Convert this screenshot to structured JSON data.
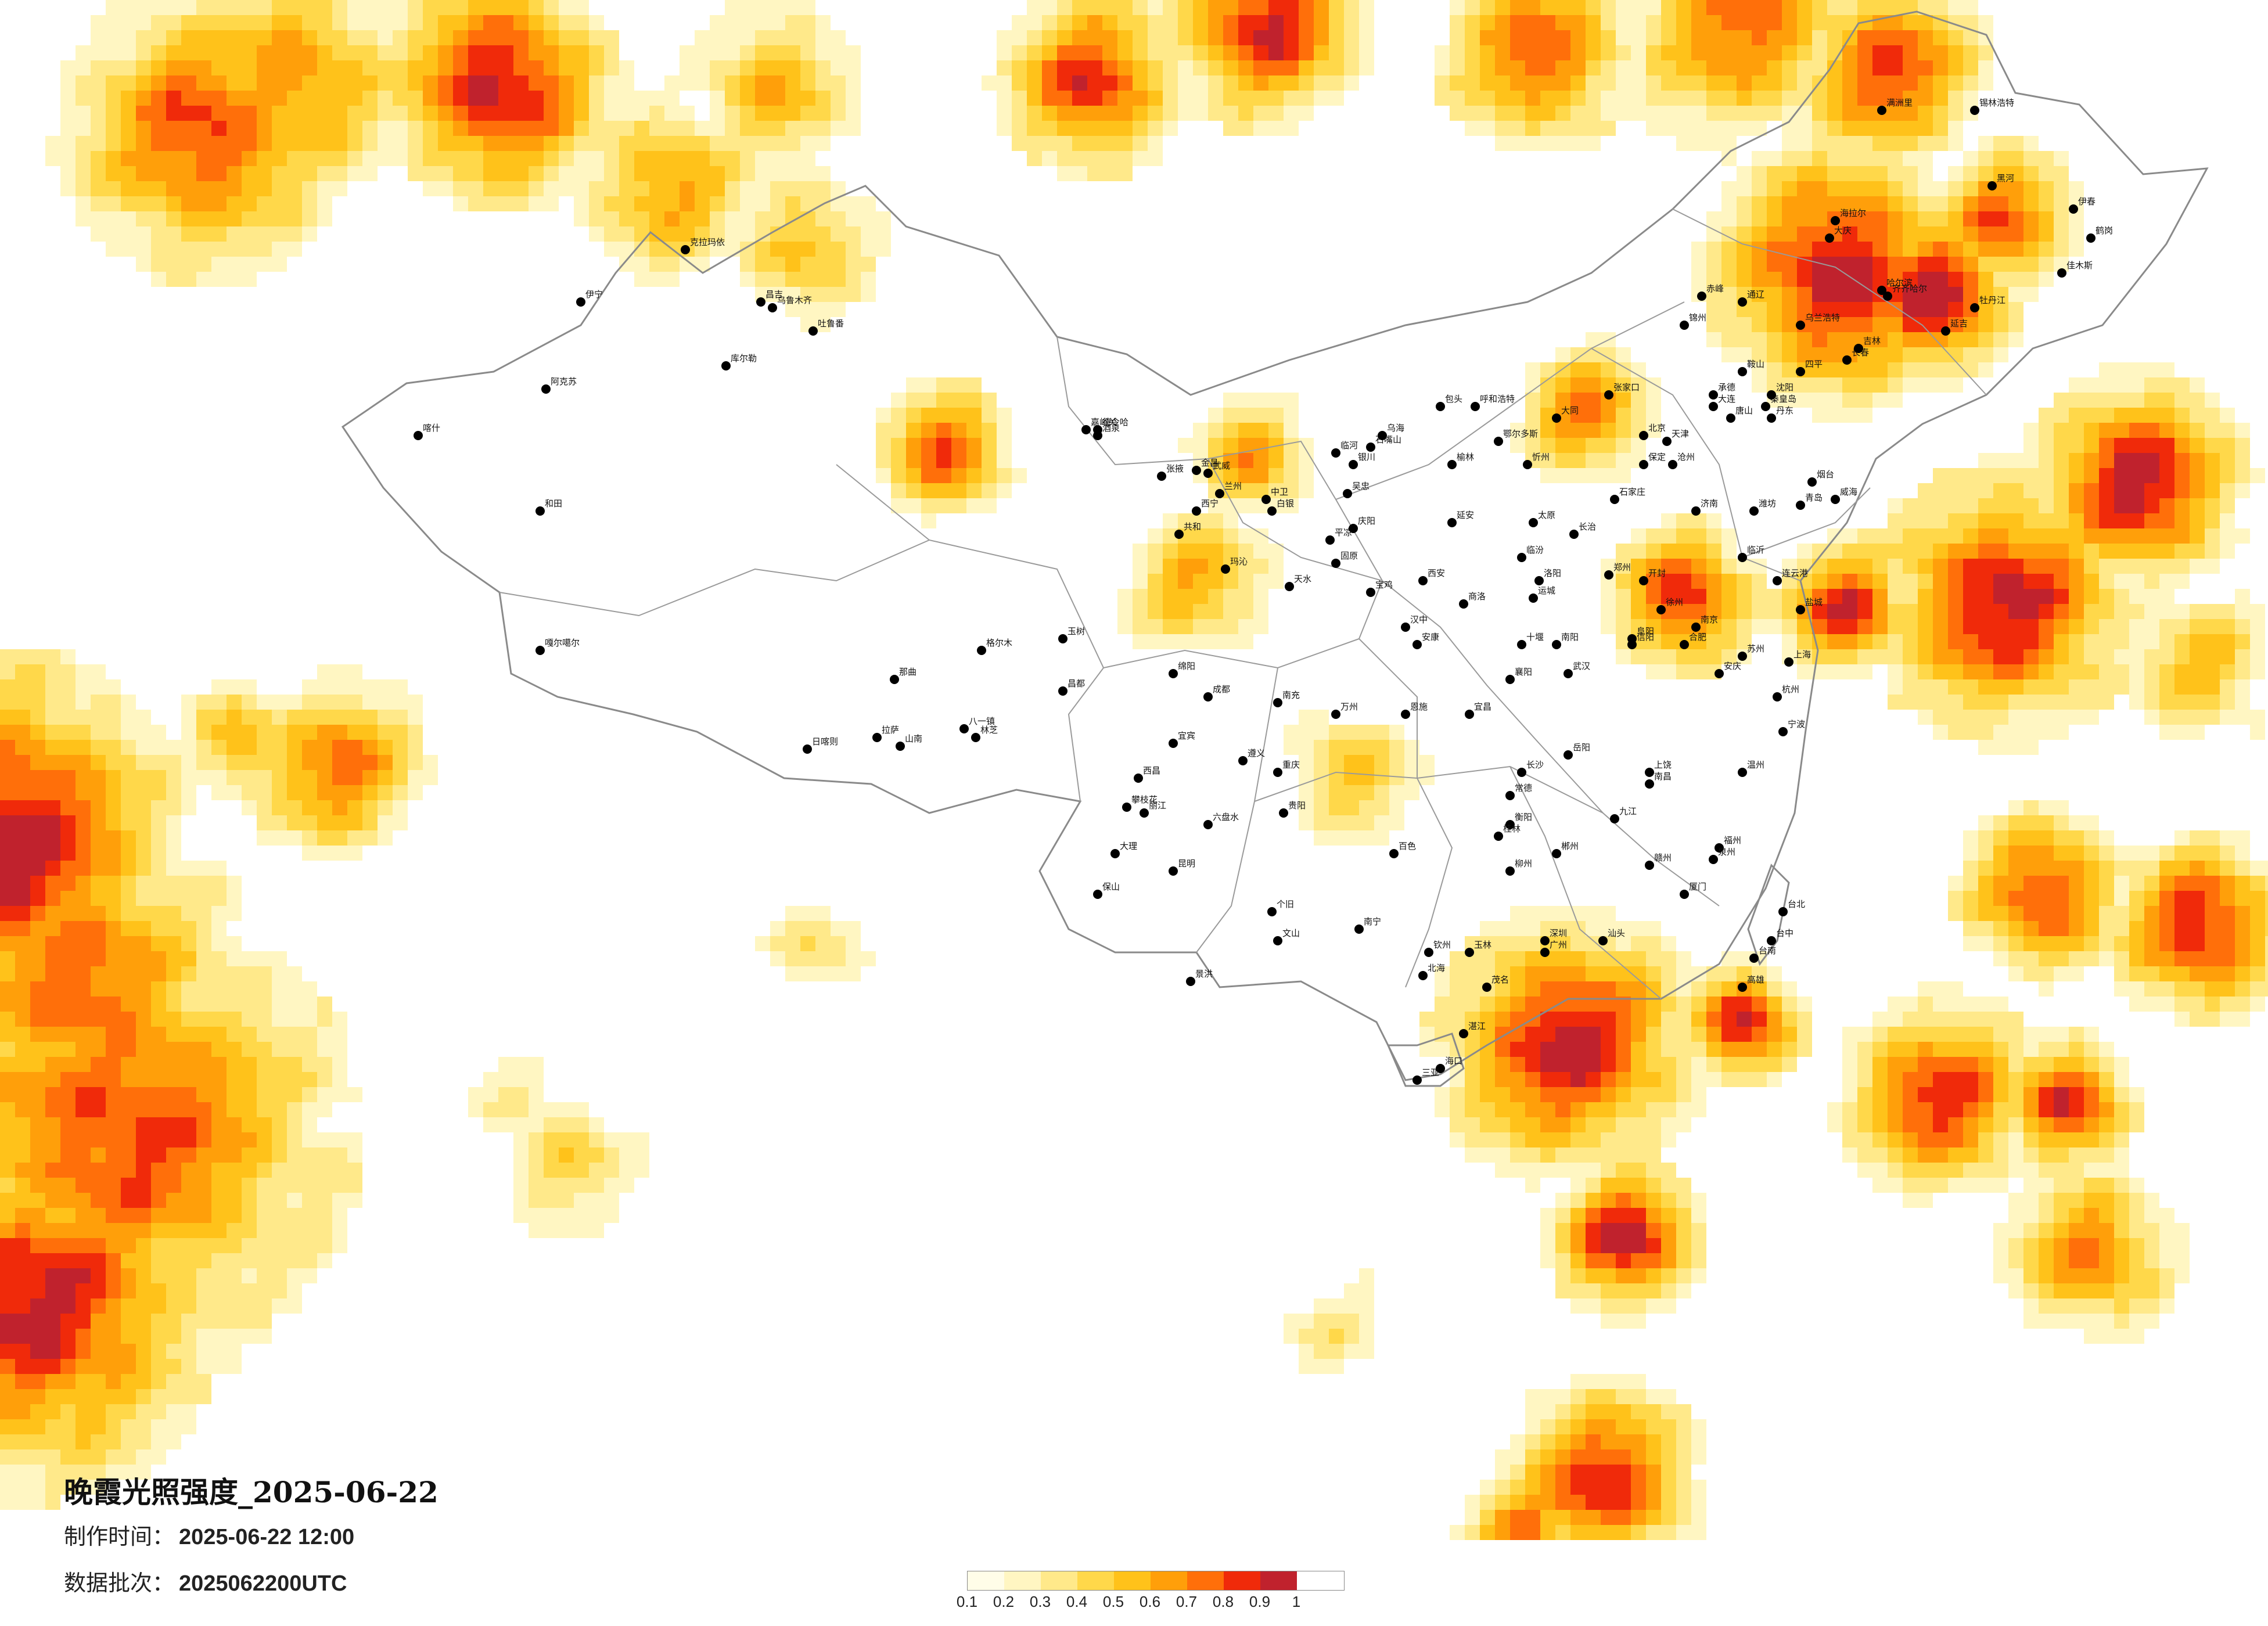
{
  "title": "晚霞光照强度_2025-06-22",
  "meta": {
    "made_label": "制作时间：",
    "made_value": "2025-06-22 12:00",
    "batch_label": "数据批次：",
    "batch_value": "2025062200UTC"
  },
  "legend": {
    "ticks": [
      "0.1",
      "0.2",
      "0.3",
      "0.4",
      "0.5",
      "0.6",
      "0.7",
      "0.8",
      "0.9",
      "1"
    ],
    "colors": [
      "#fffde8",
      "#fff6c2",
      "#ffe98a",
      "#ffd84a",
      "#ffc21a",
      "#ff9f0a",
      "#ff6f0a",
      "#f02a0a",
      "#c0222d"
    ]
  },
  "cities": [
    {
      "name": "克拉玛依"
    },
    {
      "name": "伊宁"
    },
    {
      "name": "昌吉"
    },
    {
      "name": "乌鲁木齐"
    },
    {
      "name": "吐鲁番"
    },
    {
      "name": "库尔勒"
    },
    {
      "name": "阿克苏"
    },
    {
      "name": "喀什"
    },
    {
      "name": "和田"
    },
    {
      "name": "嘎尔噶尔"
    },
    {
      "name": "那曲"
    },
    {
      "name": "日喀则"
    },
    {
      "name": "拉萨"
    },
    {
      "name": "山南"
    },
    {
      "name": "八一镇"
    },
    {
      "name": "林芝"
    },
    {
      "name": "玉树"
    },
    {
      "name": "昌都"
    },
    {
      "name": "格尔木"
    },
    {
      "name": "德令哈"
    },
    {
      "name": "西宁"
    },
    {
      "name": "共和"
    },
    {
      "name": "玛沁"
    },
    {
      "name": "嘉峪关"
    },
    {
      "name": "酒泉"
    },
    {
      "name": "张掖"
    },
    {
      "name": "武威"
    },
    {
      "name": "金昌"
    },
    {
      "name": "兰州"
    },
    {
      "name": "白银"
    },
    {
      "name": "天水"
    },
    {
      "name": "平凉"
    },
    {
      "name": "庆阳"
    },
    {
      "name": "固原"
    },
    {
      "name": "中卫"
    },
    {
      "name": "吴忠"
    },
    {
      "name": "银川"
    },
    {
      "name": "石嘴山"
    },
    {
      "name": "乌海"
    },
    {
      "name": "临河"
    },
    {
      "name": "包头"
    },
    {
      "name": "呼和浩特"
    },
    {
      "name": "鄂尔多斯"
    },
    {
      "name": "榆林"
    },
    {
      "name": "延安"
    },
    {
      "name": "西安"
    },
    {
      "name": "宝鸡"
    },
    {
      "name": "汉中"
    },
    {
      "name": "安康"
    },
    {
      "name": "商洛"
    },
    {
      "name": "太原"
    },
    {
      "name": "大同"
    },
    {
      "name": "忻州"
    },
    {
      "name": "长治"
    },
    {
      "name": "临汾"
    },
    {
      "name": "运城"
    },
    {
      "name": "石家庄"
    },
    {
      "name": "保定"
    },
    {
      "name": "北京"
    },
    {
      "name": "天津"
    },
    {
      "name": "张家口"
    },
    {
      "name": "承德"
    },
    {
      "name": "秦皇岛"
    },
    {
      "name": "唐山"
    },
    {
      "name": "沧州"
    },
    {
      "name": "济南"
    },
    {
      "name": "青岛"
    },
    {
      "name": "烟台"
    },
    {
      "name": "威海"
    },
    {
      "name": "潍坊"
    },
    {
      "name": "临沂"
    },
    {
      "name": "郑州"
    },
    {
      "name": "洛阳"
    },
    {
      "name": "开封"
    },
    {
      "name": "南阳"
    },
    {
      "name": "信阳"
    },
    {
      "name": "合肥"
    },
    {
      "name": "阜阳"
    },
    {
      "name": "安庆"
    },
    {
      "name": "南京"
    },
    {
      "name": "徐州"
    },
    {
      "name": "连云港"
    },
    {
      "name": "盐城"
    },
    {
      "name": "苏州"
    },
    {
      "name": "上海"
    },
    {
      "name": "杭州"
    },
    {
      "name": "宁波"
    },
    {
      "name": "温州"
    },
    {
      "name": "武汉"
    },
    {
      "name": "宜昌"
    },
    {
      "name": "襄阳"
    },
    {
      "name": "十堰"
    },
    {
      "name": "恩施"
    },
    {
      "name": "长沙"
    },
    {
      "name": "岳阳"
    },
    {
      "name": "常德"
    },
    {
      "name": "衡阳"
    },
    {
      "name": "郴州"
    },
    {
      "name": "南昌"
    },
    {
      "name": "九江"
    },
    {
      "name": "赣州"
    },
    {
      "name": "上饶"
    },
    {
      "name": "福州"
    },
    {
      "name": "厦门"
    },
    {
      "name": "泉州"
    },
    {
      "name": "广州"
    },
    {
      "name": "深圳"
    },
    {
      "name": "汕头"
    },
    {
      "name": "湛江"
    },
    {
      "name": "茂名"
    },
    {
      "name": "海口"
    },
    {
      "name": "三亚"
    },
    {
      "name": "南宁"
    },
    {
      "name": "桂林"
    },
    {
      "name": "柳州"
    },
    {
      "name": "百色"
    },
    {
      "name": "北海"
    },
    {
      "name": "钦州"
    },
    {
      "name": "玉林"
    },
    {
      "name": "贵阳"
    },
    {
      "name": "遵义"
    },
    {
      "name": "六盘水"
    },
    {
      "name": "昆明"
    },
    {
      "name": "大理"
    },
    {
      "name": "丽江"
    },
    {
      "name": "保山"
    },
    {
      "name": "个旧"
    },
    {
      "name": "文山"
    },
    {
      "name": "景洪"
    },
    {
      "name": "成都"
    },
    {
      "name": "绵阳"
    },
    {
      "name": "南充"
    },
    {
      "name": "宜宾"
    },
    {
      "name": "西昌"
    },
    {
      "name": "攀枝花"
    },
    {
      "name": "重庆"
    },
    {
      "name": "万州"
    },
    {
      "name": "沈阳"
    },
    {
      "name": "大连"
    },
    {
      "name": "鞍山"
    },
    {
      "name": "丹东"
    },
    {
      "name": "锦州"
    },
    {
      "name": "长春"
    },
    {
      "name": "吉林"
    },
    {
      "name": "延吉"
    },
    {
      "name": "四平"
    },
    {
      "name": "哈尔滨"
    },
    {
      "name": "齐齐哈尔"
    },
    {
      "name": "大庆"
    },
    {
      "name": "牡丹江"
    },
    {
      "name": "佳木斯"
    },
    {
      "name": "鹤岗"
    },
    {
      "name": "伊春"
    },
    {
      "name": "黑河"
    },
    {
      "name": "海拉尔"
    },
    {
      "name": "满洲里"
    },
    {
      "name": "锡林浩特"
    },
    {
      "name": "赤峰"
    },
    {
      "name": "通辽"
    },
    {
      "name": "乌兰浩特"
    },
    {
      "name": "台北"
    },
    {
      "name": "台中"
    },
    {
      "name": "台南"
    },
    {
      "name": "高雄"
    }
  ]
}
